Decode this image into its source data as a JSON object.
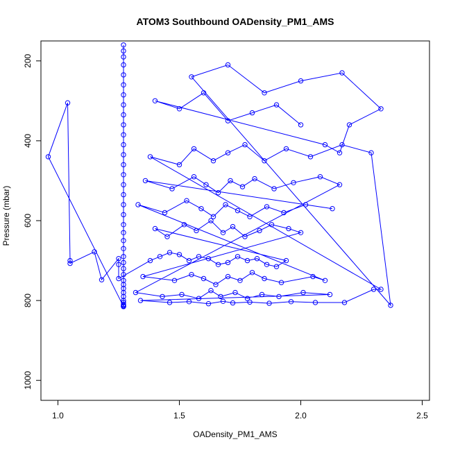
{
  "chart_data": {
    "type": "line",
    "title": "ATOM3 Southbound OADensity_PM1_AMS",
    "xlabel": "OADensity_PM1_AMS",
    "ylabel": "Pressure (mbar)",
    "xlim": [
      0.93,
      2.53
    ],
    "ylim": [
      1050,
      150
    ],
    "y_inverted": true,
    "xticks": [
      1.0,
      1.5,
      2.0,
      2.5
    ],
    "xtick_labels": [
      "1.0",
      "1.5",
      "2.0",
      "2.5"
    ],
    "yticks": [
      200,
      400,
      600,
      800,
      1000
    ],
    "ytick_labels": [
      "200",
      "400",
      "600",
      "800",
      "1000"
    ],
    "grid": false,
    "series_color": "#0000ff",
    "marker": "open-circle",
    "note_points": "Approximate representative sample of the dense observed data cloud",
    "series": [
      {
        "x": [
          1.27,
          1.27,
          1.27,
          1.27,
          1.27,
          1.27,
          1.27,
          1.27,
          1.27,
          1.27,
          1.27,
          1.27,
          1.27,
          1.27,
          1.27,
          1.27,
          1.27,
          1.27,
          1.27,
          1.27,
          1.27,
          1.27,
          1.27,
          1.27,
          1.27,
          1.27,
          1.27,
          1.27,
          1.27,
          1.27,
          1.27,
          1.27,
          1.27,
          1.27,
          1.27,
          1.27,
          1.27,
          1.27,
          1.27,
          1.27,
          0.96,
          1.04,
          1.05,
          1.05,
          1.15,
          1.18,
          1.25,
          1.25,
          1.25,
          1.38,
          1.42,
          1.46,
          1.5,
          1.54,
          1.58,
          1.62,
          1.66,
          1.7,
          1.74,
          1.78,
          1.82,
          1.86,
          1.9,
          1.94,
          1.4,
          1.45,
          1.52,
          1.57,
          1.63,
          1.68,
          1.72,
          1.77,
          1.83,
          1.88,
          1.95,
          2.0,
          1.35,
          1.48,
          1.55,
          1.6,
          1.65,
          1.7,
          1.75,
          1.8,
          1.85,
          1.92,
          2.05,
          2.1,
          1.33,
          1.44,
          1.53,
          1.59,
          1.64,
          1.69,
          1.74,
          1.79,
          1.86,
          1.93,
          2.02,
          2.13,
          1.36,
          1.47,
          1.56,
          1.61,
          1.66,
          1.71,
          1.76,
          1.81,
          1.89,
          1.97,
          2.08,
          2.16,
          1.32,
          1.43,
          1.51,
          1.58,
          1.63,
          1.67,
          1.73,
          1.78,
          1.84,
          1.91,
          2.01,
          2.12,
          1.34,
          1.46,
          1.54,
          1.62,
          1.68,
          1.72,
          1.79,
          1.87,
          1.96,
          2.06,
          2.18,
          2.3,
          2.33,
          1.38,
          1.5,
          1.56,
          1.64,
          1.7,
          1.77,
          1.85,
          1.94,
          2.04,
          2.17,
          2.29,
          2.37,
          1.55,
          1.7,
          1.85,
          2.0,
          2.17,
          2.33,
          2.2,
          2.16,
          2.1,
          1.4,
          1.5,
          1.6,
          1.7,
          1.8,
          1.9,
          2.0
        ],
        "y": [
          160,
          175,
          190,
          210,
          235,
          260,
          285,
          310,
          335,
          360,
          385,
          410,
          435,
          460,
          485,
          510,
          535,
          560,
          585,
          610,
          630,
          650,
          670,
          690,
          705,
          720,
          735,
          750,
          760,
          770,
          780,
          790,
          800,
          805,
          810,
          812,
          814,
          815,
          815,
          815,
          440,
          305,
          700,
          707,
          678,
          748,
          695,
          710,
          745,
          700,
          690,
          680,
          685,
          700,
          690,
          695,
          710,
          705,
          690,
          700,
          695,
          710,
          715,
          700,
          620,
          640,
          610,
          625,
          600,
          630,
          615,
          640,
          625,
          610,
          620,
          630,
          740,
          750,
          735,
          745,
          760,
          740,
          750,
          730,
          745,
          755,
          740,
          750,
          560,
          580,
          550,
          570,
          590,
          560,
          575,
          590,
          565,
          580,
          560,
          570,
          500,
          520,
          490,
          510,
          530,
          500,
          515,
          495,
          520,
          505,
          490,
          510,
          780,
          790,
          785,
          795,
          775,
          790,
          780,
          795,
          785,
          790,
          780,
          785,
          800,
          805,
          803,
          808,
          802,
          806,
          804,
          807,
          803,
          805,
          805,
          772,
          772,
          440,
          460,
          420,
          450,
          430,
          410,
          450,
          420,
          440,
          410,
          430,
          812,
          240,
          210,
          280,
          250,
          230,
          320,
          360,
          430,
          410,
          300,
          320,
          280,
          350,
          330,
          310,
          360
        ]
      }
    ]
  }
}
